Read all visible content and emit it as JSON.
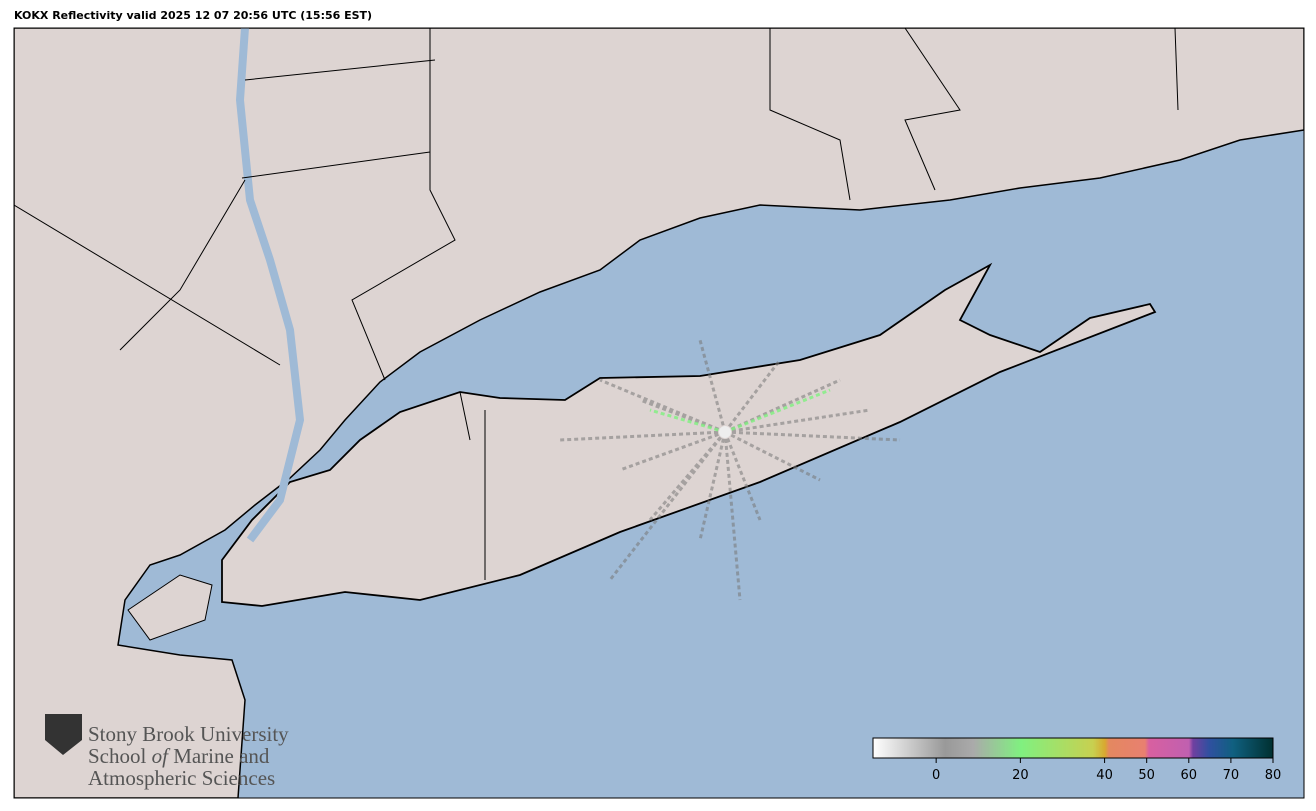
{
  "title": "KOKX Reflectivity valid 2025 12 07 20:56 UTC (15:56 EST)",
  "logo": {
    "lines": [
      [
        "Stony Brook University"
      ],
      [
        "School",
        "of",
        "Marine and"
      ],
      [
        "Atmospheric Sciences"
      ]
    ]
  },
  "colorbar": {
    "range": [
      -15,
      80
    ],
    "ticks": [
      0,
      20,
      40,
      50,
      60,
      70,
      80
    ]
  }
}
